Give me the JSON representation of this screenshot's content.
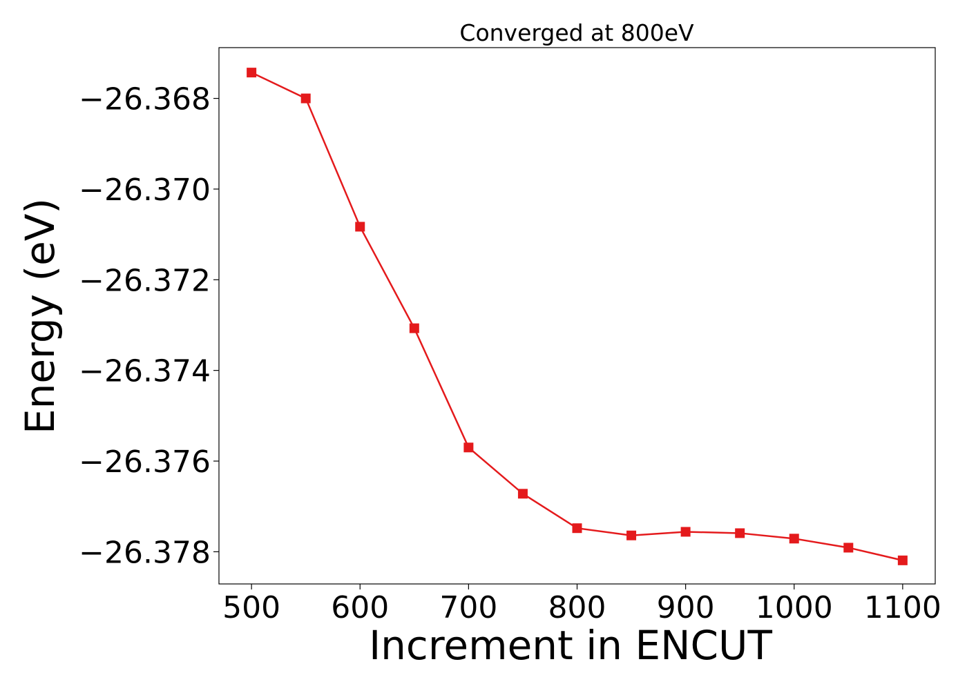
{
  "chart_data": {
    "type": "line",
    "title": "Converged at 800eV",
    "xlabel": "Increment in ENCUT",
    "ylabel": "Energy (eV)",
    "x": [
      500,
      550,
      600,
      650,
      700,
      750,
      800,
      850,
      900,
      950,
      1000,
      1050,
      1100
    ],
    "series": [
      {
        "values": [
          -26.36743,
          -26.368,
          -26.37083,
          -26.37307,
          -26.3757,
          -26.37672,
          -26.37748,
          -26.37764,
          -26.37756,
          -26.37759,
          -26.37771,
          -26.37791,
          -26.37819
        ],
        "color": "#e41a1c",
        "marker": "square"
      }
    ],
    "xlim": [
      470,
      1130
    ],
    "ylim": [
      -26.37871,
      -26.36688
    ],
    "xticks": [
      500,
      600,
      700,
      800,
      900,
      1000,
      1100
    ],
    "xtick_labels": [
      "500",
      "600",
      "700",
      "800",
      "900",
      "1000",
      "1100"
    ],
    "yticks": [
      -26.368,
      -26.37,
      -26.372,
      -26.374,
      -26.376,
      -26.378
    ],
    "ytick_labels": [
      "−26.368",
      "−26.370",
      "−26.372",
      "−26.374",
      "−26.376",
      "−26.378"
    ],
    "grid": false,
    "legend": "none"
  }
}
